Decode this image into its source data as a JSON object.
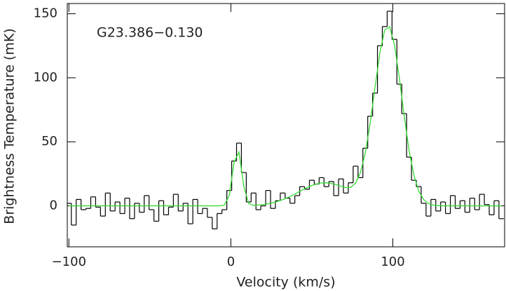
{
  "chart_data": {
    "type": "line",
    "annotation": "G23.386−0.130",
    "xlabel": "Velocity (km/s)",
    "ylabel": "Brightness Temperature (mK)",
    "xlim": [
      -101,
      169
    ],
    "ylim": [
      -32,
      158
    ],
    "xticks": [
      {
        "value": -100,
        "label": "−100"
      },
      0,
      100
    ],
    "yticks": [
      0,
      50,
      100,
      150
    ],
    "x": [
      -100,
      -97,
      -94,
      -91,
      -88,
      -85,
      -82,
      -79,
      -76,
      -73,
      -70,
      -67,
      -64,
      -61,
      -58,
      -55,
      -52,
      -49,
      -46,
      -43,
      -40,
      -37,
      -34,
      -31,
      -28,
      -25,
      -22,
      -19,
      -16,
      -13,
      -10,
      -7,
      -4,
      -1,
      2,
      5,
      8,
      11,
      14,
      17,
      20,
      23,
      26,
      29,
      32,
      35,
      38,
      41,
      44,
      47,
      50,
      53,
      56,
      59,
      62,
      65,
      68,
      71,
      74,
      77,
      80,
      83,
      86,
      89,
      92,
      95,
      98,
      101,
      104,
      107,
      110,
      113,
      116,
      119,
      122,
      125,
      128,
      131,
      134,
      137,
      140,
      143,
      146,
      149,
      152,
      155,
      158,
      161,
      164,
      167
    ],
    "series": [
      {
        "color": "#000000",
        "drawstyle": "steps-mid",
        "values": [
          2,
          -15,
          5,
          -3,
          -2,
          7,
          -1,
          -8,
          10,
          -4,
          3,
          -6,
          6,
          -10,
          2,
          -5,
          8,
          -3,
          -12,
          4,
          -7,
          -1,
          9,
          -4,
          2,
          -14,
          5,
          -6,
          -2,
          -9,
          -18,
          -6,
          -3,
          12,
          35,
          49,
          26,
          3,
          10,
          -3,
          0,
          12,
          -2,
          4,
          10,
          6,
          2,
          8,
          15,
          13,
          20,
          17,
          22,
          15,
          19,
          8,
          21,
          10,
          18,
          31,
          22,
          45,
          70,
          88,
          125,
          140,
          152,
          130,
          95,
          72,
          38,
          20,
          15,
          2,
          -8,
          5,
          -4,
          3,
          -6,
          8,
          -2,
          4,
          -5,
          6,
          -3,
          9,
          1,
          -7,
          4,
          -10
        ]
      },
      {
        "color": "#33dd33",
        "drawstyle": "line",
        "values": [
          0,
          0,
          0,
          0,
          0,
          0,
          0,
          0,
          0,
          0,
          0,
          0,
          0,
          0,
          0,
          0,
          0,
          0,
          0,
          0,
          0,
          0,
          0,
          0,
          0,
          0,
          0,
          0,
          0,
          0,
          0,
          0,
          0.6,
          8.1,
          34.2,
          42.0,
          15.1,
          1.8,
          0.4,
          0.7,
          1.1,
          1.6,
          2.4,
          3.5,
          4.8,
          6.4,
          8.2,
          10.2,
          12.3,
          14.2,
          15.9,
          17.1,
          17.9,
          18.0,
          17.5,
          16.5,
          15.2,
          14.2,
          14.5,
          17.7,
          26.0,
          41.4,
          64.5,
          92.6,
          119.6,
          137.4,
          139.8,
          125.8,
          100.0,
          70.3,
          43.5,
          23.9,
          11.5,
          4.9,
          1.8,
          0.6,
          0.2,
          0,
          0,
          0,
          0,
          0,
          0,
          0,
          0,
          0,
          0,
          0,
          0,
          0
        ]
      }
    ]
  }
}
